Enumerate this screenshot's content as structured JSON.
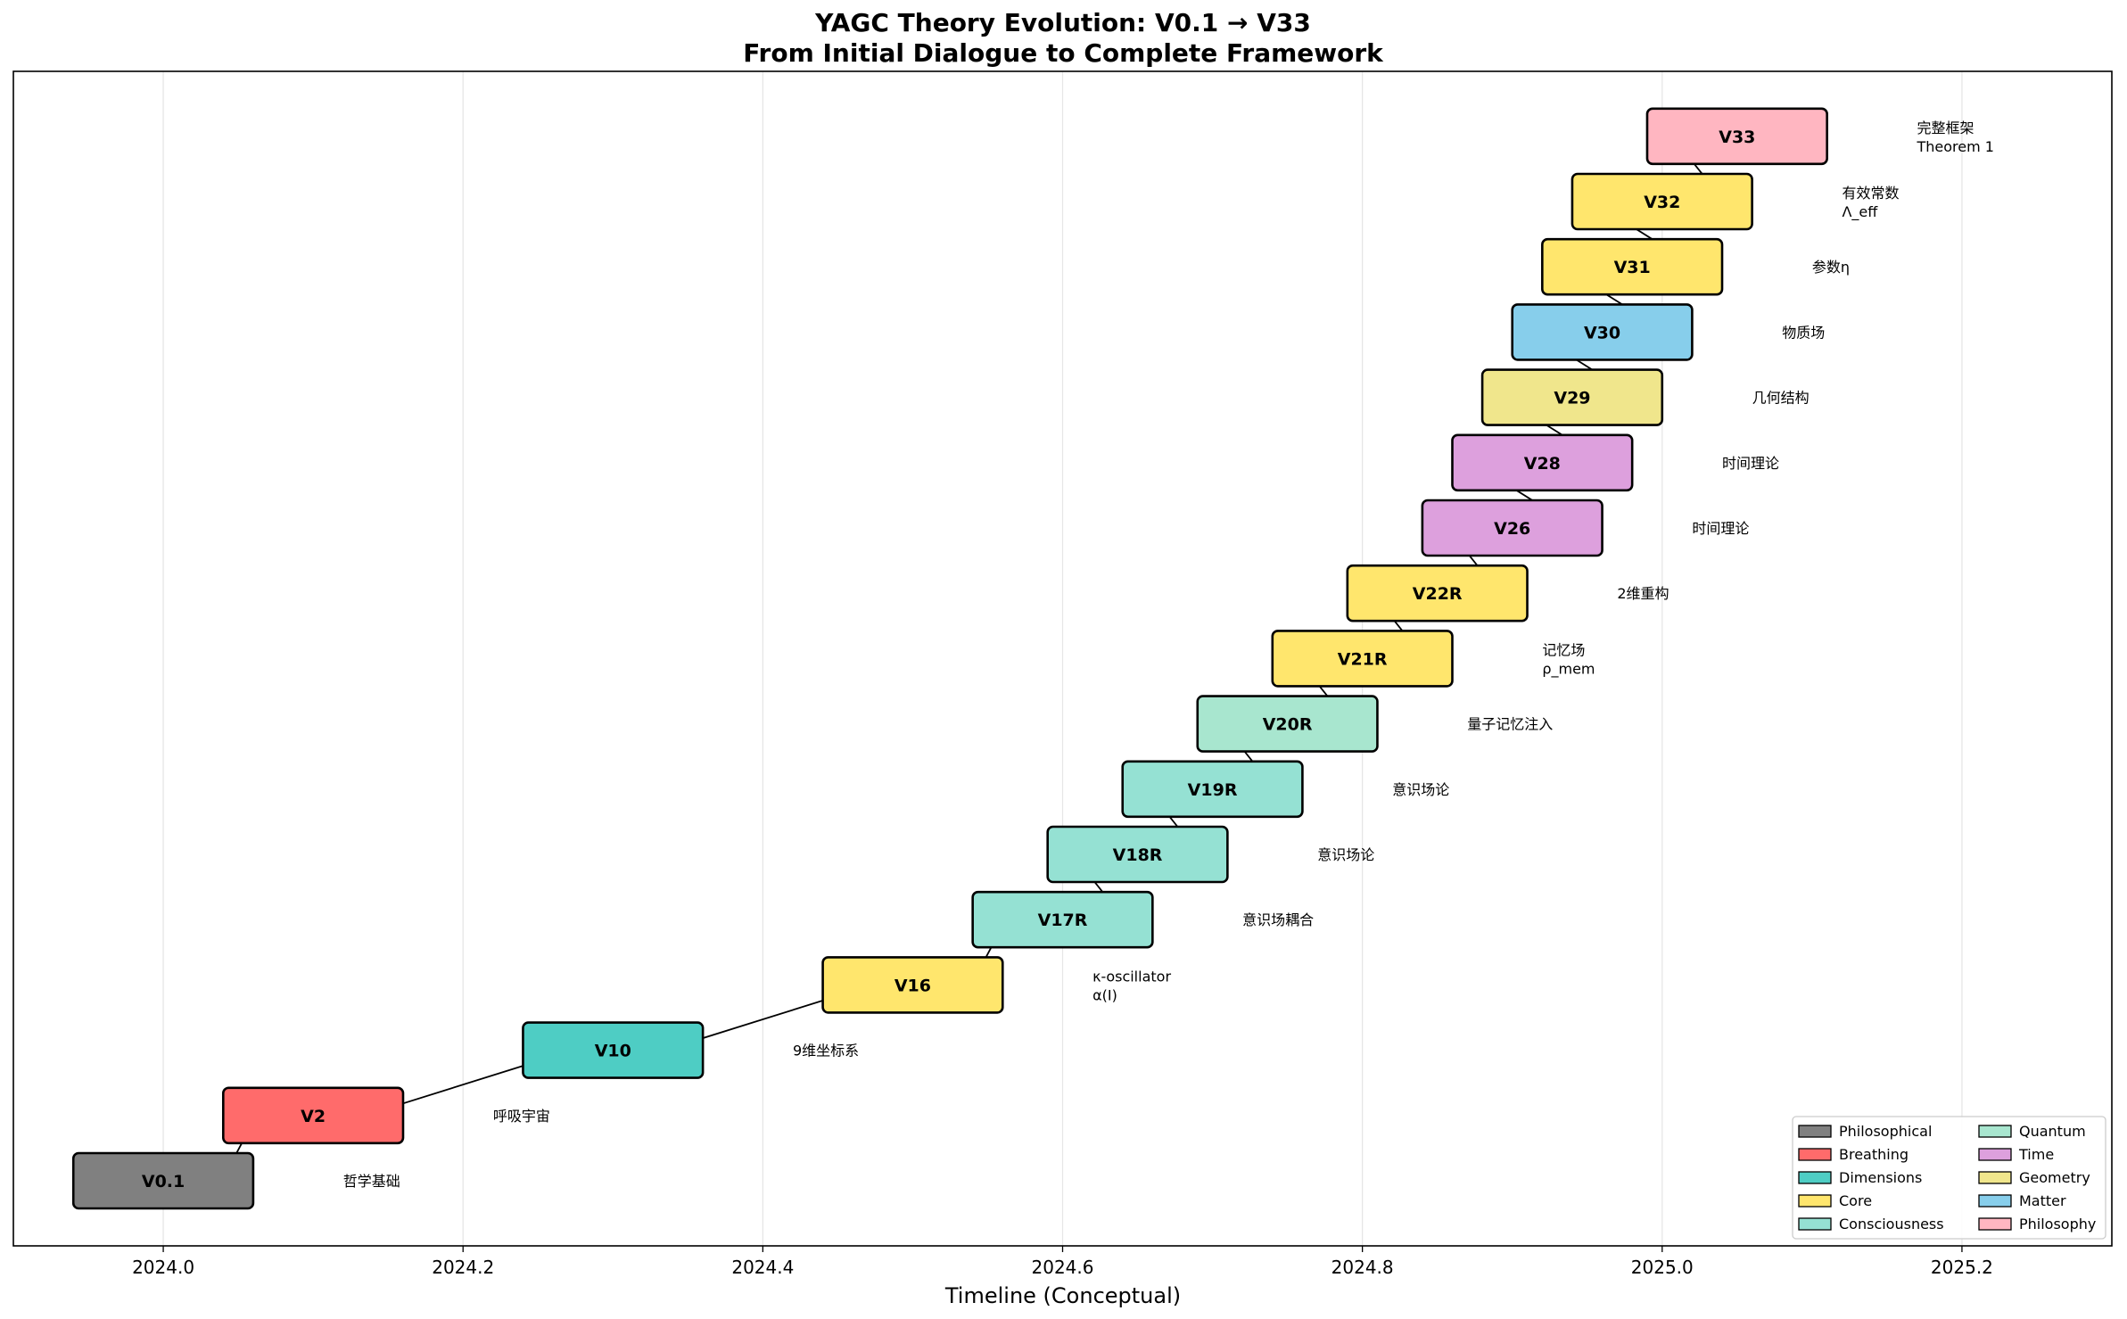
{
  "chart_data": {
    "type": "timeline",
    "title": "YAGC Theory Evolution: V0.1 → V33",
    "subtitle": "From Initial Dialogue to Complete Framework",
    "xlabel": "Timeline (Conceptual)",
    "ylabel": "",
    "xlim": [
      2023.9,
      2025.3
    ],
    "xticks": [
      "2024.0",
      "2024.2",
      "2024.4",
      "2024.6",
      "2024.8",
      "2025.0",
      "2025.2"
    ],
    "xtick_values": [
      2024.0,
      2024.2,
      2024.4,
      2024.6,
      2024.8,
      2025.0,
      2025.2
    ],
    "grid": "vertical",
    "legend_position": "lower-right",
    "categories": [
      {
        "name": "Philosophical",
        "color": "#808080"
      },
      {
        "name": "Breathing",
        "color": "#ff6b6b"
      },
      {
        "name": "Dimensions",
        "color": "#4ecdc4"
      },
      {
        "name": "Core",
        "color": "#ffe66d"
      },
      {
        "name": "Consciousness",
        "color": "#95e1d3"
      },
      {
        "name": "Quantum",
        "color": "#a8e6cf"
      },
      {
        "name": "Time",
        "color": "#dda0dd"
      },
      {
        "name": "Geometry",
        "color": "#f0e68c"
      },
      {
        "name": "Matter",
        "color": "#87ceeb"
      },
      {
        "name": "Philosophy",
        "color": "#ffb6c1"
      }
    ],
    "versions": [
      {
        "label": "V0.1",
        "x": 2024.0,
        "level": 0,
        "category": "Philosophical",
        "note": [
          "哲学基础"
        ]
      },
      {
        "label": "V2",
        "x": 2024.1,
        "level": 1,
        "category": "Breathing",
        "note": [
          "呼吸宇宙"
        ]
      },
      {
        "label": "V10",
        "x": 2024.3,
        "level": 2,
        "category": "Dimensions",
        "note": [
          "9维坐标系"
        ]
      },
      {
        "label": "V16",
        "x": 2024.5,
        "level": 3,
        "category": "Core",
        "note": [
          "κ-oscillator",
          "α(I)"
        ]
      },
      {
        "label": "V17R",
        "x": 2024.6,
        "level": 4,
        "category": "Consciousness",
        "note": [
          "意识场耦合"
        ]
      },
      {
        "label": "V18R",
        "x": 2024.65,
        "level": 5,
        "category": "Consciousness",
        "note": [
          "意识场论"
        ]
      },
      {
        "label": "V19R",
        "x": 2024.7,
        "level": 6,
        "category": "Consciousness",
        "note": [
          "意识场论"
        ]
      },
      {
        "label": "V20R",
        "x": 2024.75,
        "level": 7,
        "category": "Quantum",
        "note": [
          "量子记忆注入"
        ]
      },
      {
        "label": "V21R",
        "x": 2024.8,
        "level": 8,
        "category": "Core",
        "note": [
          "记忆场",
          "ρ_mem"
        ]
      },
      {
        "label": "V22R",
        "x": 2024.85,
        "level": 9,
        "category": "Core",
        "note": [
          "2维重构"
        ]
      },
      {
        "label": "V26",
        "x": 2024.9,
        "level": 10,
        "category": "Time",
        "note": [
          "时间理论"
        ]
      },
      {
        "label": "V28",
        "x": 2024.92,
        "level": 11,
        "category": "Time",
        "note": [
          "时间理论"
        ]
      },
      {
        "label": "V29",
        "x": 2024.94,
        "level": 12,
        "category": "Geometry",
        "note": [
          "几何结构"
        ]
      },
      {
        "label": "V30",
        "x": 2024.96,
        "level": 13,
        "category": "Matter",
        "note": [
          "物质场"
        ]
      },
      {
        "label": "V31",
        "x": 2024.98,
        "level": 14,
        "category": "Core",
        "note": [
          "参数η"
        ]
      },
      {
        "label": "V32",
        "x": 2025.0,
        "level": 15,
        "category": "Core",
        "note": [
          "有效常数",
          "Λ_eff"
        ]
      },
      {
        "label": "V33",
        "x": 2025.05,
        "level": 16,
        "category": "Philosophy",
        "note": [
          "完整框架",
          "Theorem 1"
        ]
      }
    ]
  }
}
